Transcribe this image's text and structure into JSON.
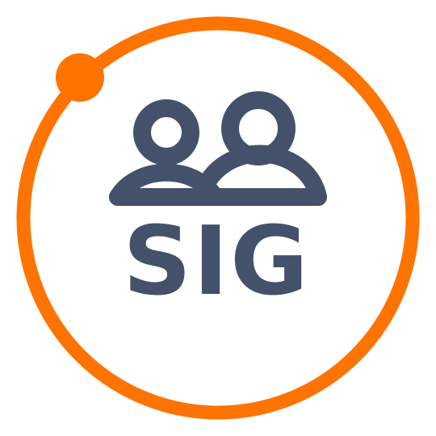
{
  "logo": {
    "text": "SIG",
    "icon_name": "people-group-icon",
    "colors": {
      "ring": "#ff7300",
      "glyph": "#43526a",
      "background": "#ffffff"
    }
  }
}
